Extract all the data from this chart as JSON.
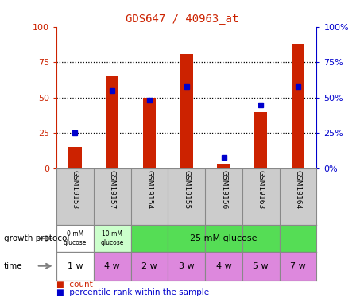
{
  "title": "GDS647 / 40963_at",
  "samples": [
    "GSM19153",
    "GSM19157",
    "GSM19154",
    "GSM19155",
    "GSM19156",
    "GSM19163",
    "GSM19164"
  ],
  "counts": [
    15,
    65,
    50,
    81,
    3,
    40,
    88
  ],
  "percentiles": [
    25,
    55,
    48,
    58,
    8,
    45,
    58
  ],
  "bar_color": "#cc2200",
  "dot_color": "#0000cc",
  "yticks": [
    0,
    25,
    50,
    75,
    100
  ],
  "ylim": [
    0,
    100
  ],
  "growth_protocol_colors": [
    "#ffffff",
    "#ccffcc",
    "#55dd55"
  ],
  "growth_protocol_labels": [
    "0 mM\nglucose",
    "10 mM\nglucose",
    "25 mM glucose"
  ],
  "time_labels": [
    "1 w",
    "4 w",
    "2 w",
    "3 w",
    "4 w",
    "5 w",
    "7 w"
  ],
  "time_colors": [
    "#ffffff",
    "#dd88dd",
    "#dd88dd",
    "#dd88dd",
    "#dd88dd",
    "#dd88dd",
    "#dd88dd"
  ],
  "legend_count_label": "count",
  "legend_pct_label": "percentile rank within the sample",
  "left_axis_color": "#cc2200",
  "right_axis_color": "#0000cc",
  "growth_label": "growth protocol",
  "time_label": "time",
  "bg_xlab_color": "#cccccc",
  "bar_width": 0.35,
  "title_color": "#cc2200"
}
